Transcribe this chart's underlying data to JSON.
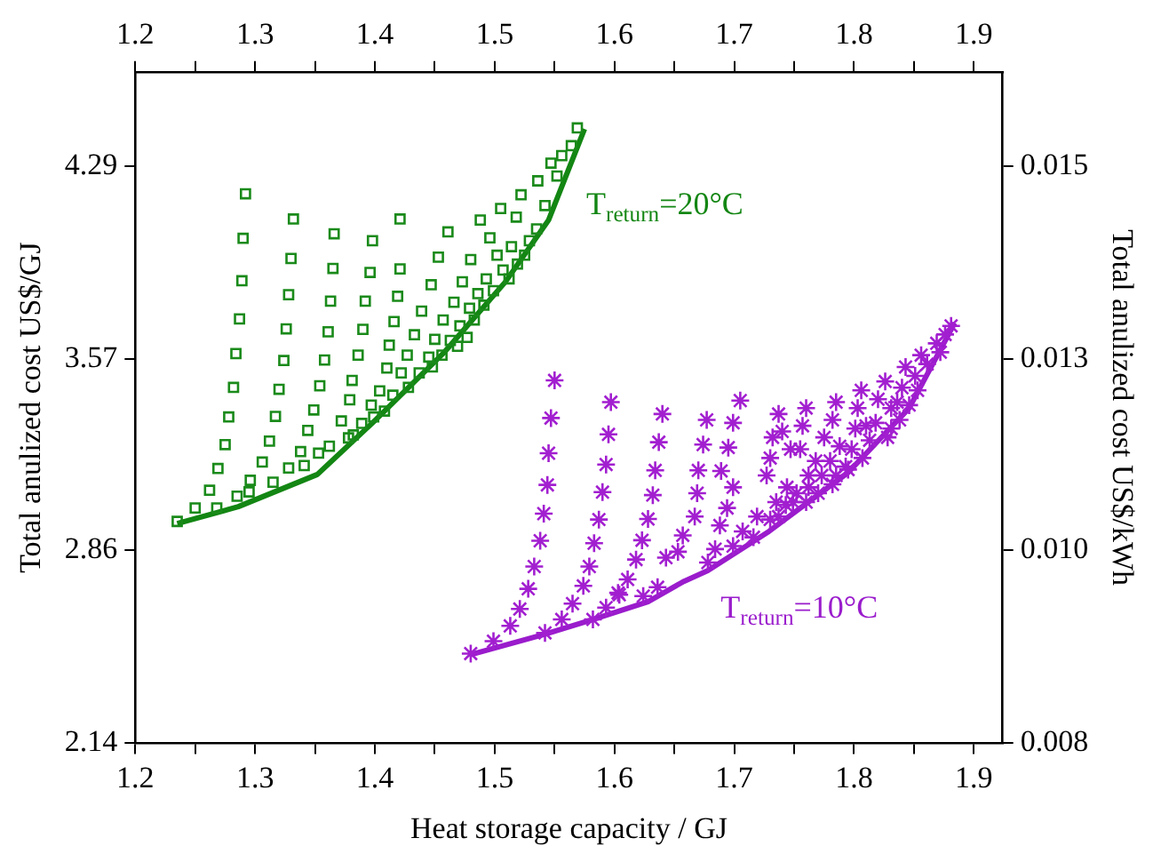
{
  "chart_data": {
    "type": "scatter",
    "xlabel": "Heat storage capacity / GJ",
    "ylabel": "Total anulized cost US$/GJ",
    "y2label": "Total anulized cost US$/kWh",
    "xlim": [
      1.2,
      1.924
    ],
    "xticks": [
      1.2,
      {
        "value": 1.25,
        "label": null
      },
      1.3,
      {
        "value": 1.35,
        "label": null
      },
      1.4,
      {
        "value": 1.45,
        "label": null
      },
      1.5,
      {
        "value": 1.55,
        "label": null
      },
      1.6,
      {
        "value": 1.65,
        "label": null
      },
      1.7,
      {
        "value": 1.75,
        "label": null
      },
      1.8,
      {
        "value": 1.85,
        "label": null
      },
      1.9
    ],
    "x2lim": [
      1.2,
      1.924
    ],
    "x2ticks": [
      1.2,
      {
        "value": 1.25,
        "label": null
      },
      1.3,
      {
        "value": 1.35,
        "label": null
      },
      1.4,
      {
        "value": 1.45,
        "label": null
      },
      1.5,
      {
        "value": 1.55,
        "label": null
      },
      1.6,
      {
        "value": 1.65,
        "label": null
      },
      1.7,
      {
        "value": 1.75,
        "label": null
      },
      1.8,
      {
        "value": 1.85,
        "label": null
      },
      1.9
    ],
    "ylim": [
      2.14,
      4.64
    ],
    "yticks": [
      2.14,
      2.86,
      3.57,
      4.29
    ],
    "y2lim": [
      0.007704,
      0.016704
    ],
    "y2ticks": [
      {
        "value": 0.007704,
        "label": "0.008"
      },
      {
        "value": 0.010296,
        "label": "0.010"
      },
      {
        "value": 0.012852,
        "label": "0.013"
      },
      {
        "value": 0.015444,
        "label": "0.015"
      }
    ],
    "series": [
      {
        "type": "scatter",
        "marker": "square",
        "color": "#1a8a1a",
        "x": [
          1.292,
          1.29,
          1.289,
          1.287,
          1.284,
          1.282,
          1.278,
          1.275,
          1.269,
          1.262,
          1.25,
          1.235,
          1.332,
          1.33,
          1.328,
          1.326,
          1.324,
          1.32,
          1.317,
          1.312,
          1.306,
          1.296,
          1.285,
          1.268,
          1.366,
          1.365,
          1.363,
          1.361,
          1.358,
          1.354,
          1.349,
          1.344,
          1.338,
          1.328,
          1.315,
          1.295,
          1.398,
          1.396,
          1.392,
          1.39,
          1.386,
          1.381,
          1.379,
          1.372,
          1.362,
          1.353,
          1.341,
          1.421,
          1.421,
          1.419,
          1.416,
          1.412,
          1.41,
          1.404,
          1.397,
          1.389,
          1.382,
          1.378,
          1.461,
          1.453,
          1.447,
          1.439,
          1.433,
          1.427,
          1.422,
          1.415,
          1.408,
          1.399,
          1.488,
          1.48,
          1.473,
          1.466,
          1.457,
          1.45,
          1.445,
          1.437,
          1.428,
          1.505,
          1.496,
          1.502,
          1.493,
          1.486,
          1.479,
          1.471,
          1.463,
          1.456,
          1.448,
          1.522,
          1.518,
          1.514,
          1.507,
          1.499,
          1.491,
          1.483,
          1.477,
          1.469,
          1.536,
          1.547,
          1.556,
          1.564,
          1.569,
          1.552,
          1.542,
          1.535,
          1.529,
          1.525,
          1.519,
          1.512
        ],
        "values": [
          4.186,
          4.02,
          3.862,
          3.72,
          3.591,
          3.465,
          3.355,
          3.252,
          3.163,
          3.082,
          3.016,
          2.966,
          4.092,
          3.945,
          3.81,
          3.683,
          3.565,
          3.458,
          3.357,
          3.265,
          3.187,
          3.119,
          3.06,
          3.016,
          4.037,
          3.908,
          3.786,
          3.672,
          3.567,
          3.471,
          3.381,
          3.305,
          3.226,
          3.165,
          3.112,
          3.076,
          4.011,
          3.893,
          3.786,
          3.681,
          3.585,
          3.491,
          3.419,
          3.34,
          3.246,
          3.22,
          3.174,
          4.092,
          3.906,
          3.804,
          3.71,
          3.622,
          3.537,
          3.452,
          3.399,
          3.331,
          3.288,
          3.277,
          4.044,
          3.95,
          3.847,
          3.749,
          3.661,
          3.585,
          3.519,
          3.436,
          3.377,
          3.355,
          4.088,
          3.941,
          3.858,
          3.782,
          3.716,
          3.644,
          3.578,
          3.519,
          3.465,
          4.131,
          4.022,
          3.957,
          3.869,
          3.814,
          3.76,
          3.694,
          3.64,
          3.585,
          3.541,
          4.182,
          4.099,
          3.989,
          3.902,
          3.825,
          3.771,
          3.716,
          3.651,
          3.618,
          4.234,
          4.3,
          4.328,
          4.365,
          4.431,
          4.252,
          4.142,
          4.055,
          4.011,
          3.957,
          3.924,
          3.869
        ]
      },
      {
        "type": "line",
        "marker": "none",
        "name": "T$_{return}$=20°C",
        "color": "#138613",
        "x": [
          1.235,
          1.286,
          1.352,
          1.398,
          1.458,
          1.509,
          1.545,
          1.575
        ],
        "values": [
          2.958,
          3.021,
          3.141,
          3.333,
          3.596,
          3.858,
          4.088,
          4.427
        ]
      },
      {
        "type": "scatter",
        "marker": "cross",
        "color": "#a21fd0",
        "x": [
          1.55,
          1.547,
          1.545,
          1.544,
          1.541,
          1.538,
          1.533,
          1.528,
          1.521,
          1.513,
          1.499,
          1.48,
          1.597,
          1.595,
          1.593,
          1.59,
          1.587,
          1.583,
          1.579,
          1.574,
          1.565,
          1.556,
          1.542,
          1.64,
          1.637,
          1.634,
          1.632,
          1.628,
          1.623,
          1.618,
          1.611,
          1.603,
          1.593,
          1.582,
          1.677,
          1.674,
          1.67,
          1.669,
          1.667,
          1.657,
          1.653,
          1.643,
          1.636,
          1.624,
          1.604,
          1.705,
          1.699,
          1.695,
          1.689,
          1.699,
          1.694,
          1.688,
          1.684,
          1.678,
          1.737,
          1.732,
          1.73,
          1.727,
          1.74,
          1.747,
          1.744,
          1.735,
          1.719,
          1.707,
          1.699,
          1.76,
          1.757,
          1.755,
          1.768,
          1.762,
          1.752,
          1.743,
          1.73,
          1.716,
          1.785,
          1.782,
          1.775,
          1.788,
          1.78,
          1.773,
          1.762,
          1.749,
          1.737,
          1.806,
          1.803,
          1.801,
          1.81,
          1.798,
          1.793,
          1.782,
          1.77,
          1.76,
          1.826,
          1.82,
          1.831,
          1.818,
          1.813,
          1.807,
          1.795,
          1.785,
          1.843,
          1.851,
          1.84,
          1.836,
          1.831,
          1.856,
          1.869,
          1.861,
          1.853,
          1.846,
          1.838,
          1.828,
          1.872,
          1.876,
          1.881
        ],
        "values": [
          3.491,
          3.351,
          3.22,
          3.102,
          2.995,
          2.894,
          2.798,
          2.715,
          2.64,
          2.577,
          2.52,
          2.474,
          3.41,
          3.29,
          3.178,
          3.075,
          2.973,
          2.885,
          2.798,
          2.726,
          2.66,
          2.601,
          2.551,
          3.366,
          3.261,
          3.156,
          3.064,
          2.975,
          2.896,
          2.824,
          2.75,
          2.7,
          2.645,
          2.601,
          3.344,
          3.252,
          3.156,
          3.071,
          2.984,
          2.914,
          2.853,
          2.831,
          2.721,
          2.688,
          2.693,
          3.416,
          3.333,
          3.241,
          3.154,
          3.093,
          3.016,
          2.951,
          2.863,
          2.813,
          3.366,
          3.279,
          3.202,
          3.137,
          3.301,
          3.235,
          3.093,
          3.038,
          2.984,
          2.929,
          2.874,
          3.388,
          3.322,
          3.235,
          3.191,
          3.137,
          3.071,
          3.027,
          2.973,
          2.907,
          3.41,
          3.344,
          3.279,
          3.246,
          3.191,
          3.137,
          3.093,
          3.038,
          2.984,
          3.454,
          3.388,
          3.312,
          3.322,
          3.235,
          3.17,
          3.104,
          3.071,
          3.038,
          3.487,
          3.421,
          3.388,
          3.333,
          3.268,
          3.202,
          3.159,
          3.137,
          3.541,
          3.508,
          3.464,
          3.41,
          3.312,
          3.585,
          3.629,
          3.552,
          3.454,
          3.399,
          3.344,
          3.279,
          3.596,
          3.662,
          3.694
        ]
      },
      {
        "type": "line",
        "marker": "none",
        "name": "T$_{return}$=10°C",
        "color": "#9a1ccc",
        "x": [
          1.48,
          1.542,
          1.582,
          1.628,
          1.658,
          1.678,
          1.729,
          1.795,
          1.846,
          1.884
        ],
        "values": [
          2.47,
          2.546,
          2.601,
          2.667,
          2.743,
          2.783,
          2.929,
          3.148,
          3.388,
          3.705
        ]
      }
    ]
  }
}
